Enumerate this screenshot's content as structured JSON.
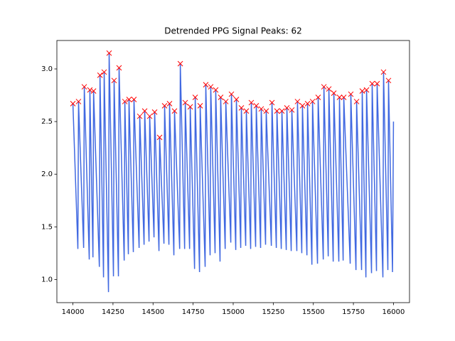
{
  "chart_data": {
    "type": "line",
    "title": "Detrended PPG Signal Peaks: 62",
    "xlim": [
      13900,
      16100
    ],
    "ylim": [
      0.78,
      3.27
    ],
    "xticks": [
      14000,
      14250,
      14500,
      14750,
      15000,
      15250,
      15500,
      15750,
      16000
    ],
    "yticks": [
      {
        "value": 1.0,
        "label": "1.0"
      },
      1.5,
      {
        "value": 2.0,
        "label": "2.0"
      },
      2.5,
      {
        "value": 3.0,
        "label": "3.0"
      }
    ],
    "series": [
      {
        "kind": "line",
        "color": "#4169e1",
        "x": [
          14000,
          14031,
          14035,
          14067,
          14071,
          14102,
          14106,
          14125,
          14129,
          14165,
          14169,
          14191,
          14195,
          14222,
          14226,
          14253,
          14257,
          14284,
          14288,
          14320,
          14324,
          14346,
          14350,
          14377,
          14381,
          14413,
          14417,
          14444,
          14448,
          14475,
          14479,
          14506,
          14510,
          14537,
          14541,
          14568,
          14572,
          14599,
          14603,
          14630,
          14634,
          14666,
          14670,
          14697,
          14701,
          14728,
          14732,
          14759,
          14763,
          14790,
          14794,
          14825,
          14829,
          14856,
          14860,
          14887,
          14891,
          14918,
          14922,
          14950,
          14954,
          14985,
          14989,
          15016,
          15020,
          15047,
          15051,
          15078,
          15082,
          15109,
          15113,
          15140,
          15144,
          15171,
          15175,
          15202,
          15206,
          15238,
          15242,
          15269,
          15273,
          15300,
          15304,
          15331,
          15335,
          15362,
          15366,
          15397,
          15401,
          15428,
          15432,
          15460,
          15464,
          15491,
          15495,
          15526,
          15530,
          15562,
          15566,
          15593,
          15597,
          15624,
          15628,
          15659,
          15663,
          15686,
          15690,
          15730,
          15734,
          15766,
          15770,
          15801,
          15805,
          15828,
          15832,
          15863,
          15867,
          15894,
          15898,
          15934,
          15938,
          15965,
          15969,
          15994,
          16000
        ],
        "values": [
          2.67,
          1.29,
          2.69,
          1.3,
          2.83,
          1.19,
          2.8,
          1.21,
          2.79,
          1.12,
          2.94,
          1.02,
          2.97,
          0.88,
          3.15,
          1.03,
          2.89,
          1.03,
          3.01,
          1.18,
          2.69,
          1.24,
          2.71,
          1.26,
          2.71,
          1.3,
          2.55,
          1.33,
          2.6,
          1.36,
          2.55,
          1.4,
          2.59,
          1.27,
          2.35,
          1.34,
          2.65,
          1.33,
          2.67,
          1.23,
          2.6,
          1.29,
          3.05,
          1.29,
          2.68,
          1.29,
          2.64,
          1.1,
          2.73,
          1.07,
          2.65,
          1.12,
          2.85,
          1.23,
          2.83,
          1.25,
          2.8,
          1.17,
          2.73,
          1.29,
          2.69,
          1.35,
          2.76,
          1.28,
          2.71,
          1.3,
          2.63,
          1.32,
          2.6,
          1.29,
          2.68,
          1.31,
          2.65,
          1.3,
          2.62,
          1.33,
          2.6,
          1.32,
          2.68,
          1.3,
          2.6,
          1.29,
          2.6,
          1.28,
          2.63,
          1.27,
          2.61,
          1.27,
          2.69,
          1.25,
          2.65,
          1.23,
          2.67,
          1.14,
          2.69,
          1.15,
          2.73,
          1.19,
          2.83,
          1.22,
          2.81,
          1.17,
          2.77,
          1.17,
          2.73,
          1.18,
          2.73,
          1.15,
          2.76,
          1.09,
          2.69,
          1.09,
          2.79,
          1.02,
          2.8,
          1.06,
          2.86,
          1.08,
          2.86,
          1.02,
          2.97,
          1.09,
          2.89,
          1.07,
          2.5
        ]
      },
      {
        "kind": "marker",
        "marker": "x",
        "color": "#ff0000",
        "x": [
          14000,
          14035,
          14071,
          14106,
          14129,
          14169,
          14195,
          14226,
          14257,
          14288,
          14324,
          14350,
          14381,
          14417,
          14448,
          14479,
          14510,
          14541,
          14572,
          14603,
          14634,
          14670,
          14701,
          14732,
          14763,
          14794,
          14829,
          14860,
          14891,
          14922,
          14954,
          14989,
          15020,
          15051,
          15082,
          15113,
          15144,
          15175,
          15206,
          15242,
          15273,
          15304,
          15335,
          15366,
          15401,
          15432,
          15464,
          15495,
          15530,
          15566,
          15597,
          15628,
          15663,
          15690,
          15734,
          15770,
          15805,
          15832,
          15867,
          15898,
          15938,
          15969
        ],
        "values": [
          2.67,
          2.69,
          2.83,
          2.8,
          2.79,
          2.94,
          2.97,
          3.15,
          2.89,
          3.01,
          2.69,
          2.71,
          2.71,
          2.55,
          2.6,
          2.55,
          2.59,
          2.35,
          2.65,
          2.67,
          2.6,
          3.05,
          2.68,
          2.64,
          2.73,
          2.65,
          2.85,
          2.83,
          2.8,
          2.73,
          2.69,
          2.76,
          2.71,
          2.63,
          2.6,
          2.68,
          2.65,
          2.62,
          2.6,
          2.68,
          2.6,
          2.6,
          2.63,
          2.61,
          2.69,
          2.65,
          2.67,
          2.69,
          2.73,
          2.83,
          2.81,
          2.77,
          2.73,
          2.73,
          2.76,
          2.69,
          2.79,
          2.8,
          2.86,
          2.86,
          2.97,
          2.89
        ]
      }
    ]
  }
}
